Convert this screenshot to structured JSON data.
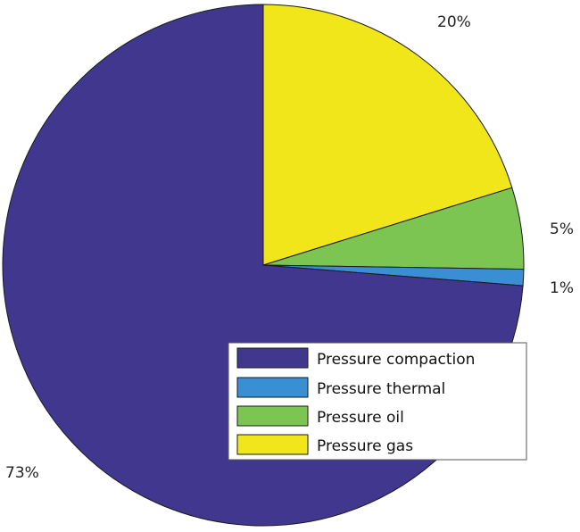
{
  "chart_data": {
    "type": "pie",
    "title": "",
    "categories": [
      "Pressure compaction",
      "Pressure thermal",
      "Pressure oil",
      "Pressure gas"
    ],
    "values": [
      73,
      1,
      5,
      20
    ],
    "labels": [
      "73%",
      "1%",
      "5%",
      "20%"
    ],
    "colors": [
      "#41378f",
      "#3a8fd4",
      "#7dc552",
      "#f0e61a"
    ],
    "legend": {
      "placement": "bottom-right",
      "entries": [
        "Pressure compaction",
        "Pressure thermal",
        "Pressure oil",
        "Pressure gas"
      ]
    }
  }
}
